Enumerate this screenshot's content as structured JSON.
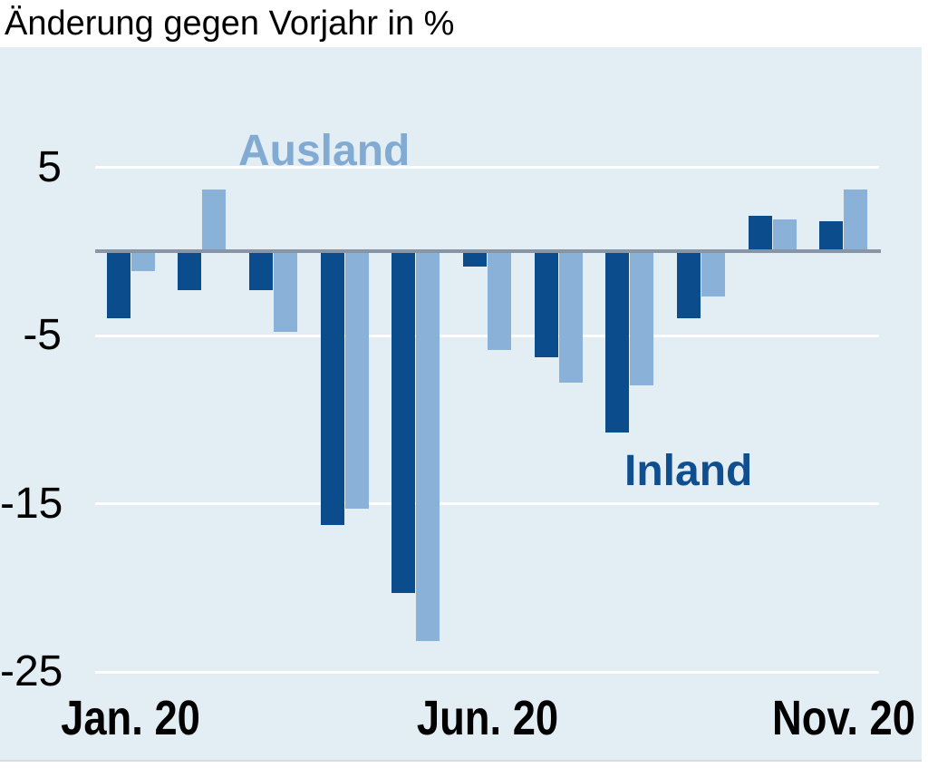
{
  "title": "Änderung gegen Vorjahr in %",
  "chart_data": {
    "type": "bar",
    "title": "Änderung gegen Vorjahr in %",
    "n_groups": 11,
    "unit": "%",
    "series": [
      {
        "name": "Inland",
        "color": "#0b4d8c",
        "values": [
          -4.0,
          -2.3,
          -2.3,
          -16.3,
          -20.3,
          -0.9,
          -6.3,
          -10.8,
          -4.0,
          2.1,
          1.8
        ]
      },
      {
        "name": "Ausland",
        "color": "#8ab1d7",
        "values": [
          -1.2,
          3.7,
          -4.8,
          -15.3,
          -23.2,
          -5.9,
          -7.8,
          -8.0,
          -2.7,
          1.9,
          3.7
        ]
      }
    ],
    "x_axis": {
      "tick_positions": [
        0,
        5,
        10
      ],
      "tick_labels": [
        "Jan. 20",
        "Jun. 20",
        "Nov. 20"
      ]
    },
    "y_axis": {
      "ticks": [
        5,
        -5,
        -15,
        -25
      ],
      "range": [
        -30,
        12
      ]
    },
    "grid": "horizontal-white-lines",
    "legend": "inline-labels",
    "labels": {
      "ausland": {
        "text": "Ausland",
        "color": "#82abd3"
      },
      "inland": {
        "text": "Inland",
        "color": "#0f4f8f"
      }
    },
    "colors": {
      "plot_background": "#e3edf4",
      "gridline": "#ffffff",
      "zero_line": "#8895a5",
      "text": "#000000"
    }
  }
}
